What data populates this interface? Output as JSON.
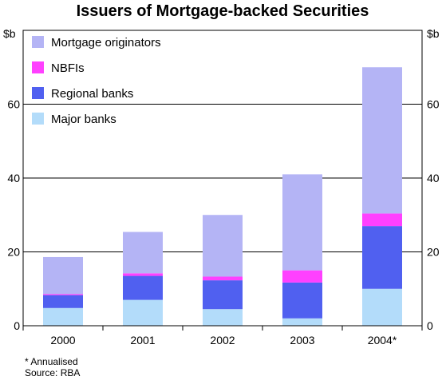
{
  "chart_data": {
    "type": "bar",
    "stacked": true,
    "title": "Issuers of Mortgage-backed Securities",
    "units_left": "$b",
    "units_right": "$b",
    "categories": [
      "2000",
      "2001",
      "2002",
      "2003",
      "2004*"
    ],
    "series": [
      {
        "name": "Major banks",
        "color": "#b3dcfa",
        "values": [
          4.8,
          7.0,
          4.5,
          2.0,
          10.0
        ]
      },
      {
        "name": "Regional banks",
        "color": "#5060f0",
        "values": [
          3.5,
          6.5,
          7.8,
          9.7,
          17.0
        ]
      },
      {
        "name": "NBFIs",
        "color": "#ff40ff",
        "values": [
          0.3,
          0.7,
          1.0,
          3.3,
          3.4
        ]
      },
      {
        "name": "Mortgage originators",
        "color": "#b4b4f5",
        "values": [
          10.0,
          11.2,
          16.7,
          26.0,
          39.6
        ]
      }
    ],
    "legend_order": [
      "Mortgage originators",
      "NBFIs",
      "Regional banks",
      "Major banks"
    ],
    "ylim": [
      0,
      80
    ],
    "yticks": [
      0,
      20,
      40,
      60
    ],
    "gridlines": [
      20,
      40,
      60
    ],
    "legend_position": "top-left",
    "notes": [
      "* Annualised",
      "Source: RBA"
    ]
  }
}
